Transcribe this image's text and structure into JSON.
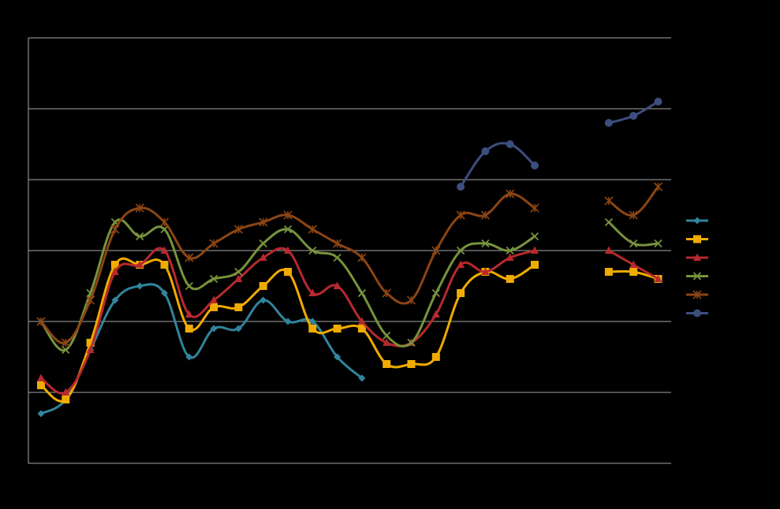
{
  "chart_data": {
    "type": "line",
    "title": "",
    "xlabel": "",
    "ylabel": "",
    "x": [
      1,
      2,
      3,
      4,
      5,
      6,
      7,
      8,
      9,
      10,
      11,
      12,
      13,
      14,
      15,
      16,
      17,
      18,
      19,
      20,
      21,
      22,
      23,
      24,
      25,
      26,
      27
    ],
    "ylim": [
      0,
      6
    ],
    "y_gridlines": [
      1,
      2,
      3,
      4,
      5,
      6
    ],
    "grid": true,
    "legend": "right",
    "series": [
      {
        "color": "#31849B",
        "marker": "diamond",
        "values": [
          0.7,
          0.9,
          1.6,
          2.3,
          2.5,
          2.4,
          1.5,
          1.9,
          1.9,
          2.3,
          2.0,
          2.0,
          1.5,
          1.2,
          null,
          null,
          null,
          null,
          null,
          null,
          null,
          null,
          null,
          null,
          null,
          null,
          null
        ]
      },
      {
        "color": "#F0AB00",
        "marker": "square",
        "values": [
          1.1,
          0.9,
          1.7,
          2.8,
          2.8,
          2.8,
          1.9,
          2.2,
          2.2,
          2.5,
          2.7,
          1.9,
          1.9,
          1.9,
          1.4,
          1.4,
          1.5,
          2.4,
          2.7,
          2.6,
          2.8,
          null,
          null,
          2.7,
          2.7,
          2.6,
          null
        ]
      },
      {
        "color": "#B7292E",
        "marker": "triangle",
        "values": [
          1.2,
          1.0,
          1.6,
          2.7,
          2.8,
          3.0,
          2.1,
          2.3,
          2.6,
          2.9,
          3.0,
          2.4,
          2.5,
          2.0,
          1.7,
          1.7,
          2.1,
          2.8,
          2.7,
          2.9,
          3.0,
          null,
          null,
          3.0,
          2.8,
          2.6,
          null
        ]
      },
      {
        "color": "#77933C",
        "marker": "x",
        "values": [
          2.0,
          1.6,
          2.4,
          3.4,
          3.2,
          3.3,
          2.5,
          2.6,
          2.7,
          3.1,
          3.3,
          3.0,
          2.9,
          2.4,
          1.8,
          1.7,
          2.4,
          3.0,
          3.1,
          3.0,
          3.2,
          null,
          null,
          3.4,
          3.1,
          3.1,
          null
        ]
      },
      {
        "color": "#8B4513",
        "marker": "asterisk",
        "values": [
          2.0,
          1.7,
          2.3,
          3.3,
          3.6,
          3.4,
          2.9,
          3.1,
          3.3,
          3.4,
          3.5,
          3.3,
          3.1,
          2.9,
          2.4,
          2.3,
          3.0,
          3.5,
          3.5,
          3.8,
          3.6,
          null,
          null,
          3.7,
          3.5,
          3.9,
          null
        ]
      },
      {
        "color": "#3C4E7E",
        "marker": "circle",
        "values": [
          null,
          null,
          null,
          null,
          null,
          null,
          null,
          null,
          null,
          null,
          null,
          null,
          null,
          null,
          null,
          null,
          null,
          3.9,
          4.4,
          4.5,
          4.2,
          null,
          null,
          4.8,
          4.9,
          5.1,
          null
        ]
      }
    ]
  }
}
